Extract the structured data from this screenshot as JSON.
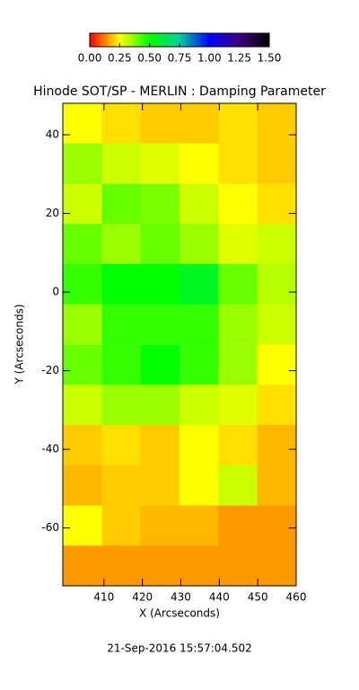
{
  "chart_data": {
    "type": "heatmap",
    "title": "Hinode SOT/SP - MERLIN : Damping Parameter",
    "x_label": "X (Arcseconds)",
    "y_label": "Y (Arcseconds)",
    "footer": "21-Sep-2016 15:57:04.502",
    "xlim": [
      399.3,
      460
    ],
    "ylim": [
      -74.7,
      48
    ],
    "xticks": [
      410,
      420,
      430,
      440,
      450,
      460
    ],
    "yticks": [
      -60,
      -40,
      -20,
      0,
      20,
      40
    ],
    "x": [
      404.4,
      414.5,
      424.6,
      434.7,
      444.8,
      454.9
    ],
    "y": [
      42.9,
      32.7,
      22.4,
      12.2,
      2.0,
      -8.2,
      -18.5,
      -28.7,
      -38.9,
      -49.2,
      -59.4,
      -69.6
    ],
    "z": [
      [
        0.25,
        0.22,
        0.2,
        0.2,
        0.22,
        0.2
      ],
      [
        0.35,
        0.3,
        0.28,
        0.25,
        0.22,
        0.2
      ],
      [
        0.3,
        0.4,
        0.38,
        0.3,
        0.25,
        0.22
      ],
      [
        0.4,
        0.35,
        0.4,
        0.35,
        0.28,
        0.3
      ],
      [
        0.45,
        0.5,
        0.5,
        0.55,
        0.4,
        0.32
      ],
      [
        0.35,
        0.45,
        0.45,
        0.45,
        0.35,
        0.3
      ],
      [
        0.4,
        0.45,
        0.5,
        0.45,
        0.35,
        0.25
      ],
      [
        0.3,
        0.35,
        0.35,
        0.3,
        0.28,
        0.22
      ],
      [
        0.2,
        0.22,
        0.2,
        0.25,
        0.22,
        0.18
      ],
      [
        0.18,
        0.2,
        0.2,
        0.25,
        0.3,
        0.18
      ],
      [
        0.25,
        0.2,
        0.18,
        0.18,
        0.15,
        0.15
      ],
      [
        0.15,
        0.15,
        0.15,
        0.15,
        0.15,
        0.15
      ]
    ],
    "clim": [
      0,
      1.5
    ],
    "colormap": [
      "#ff0000",
      "#ffff00",
      "#00ff00",
      "#00d0a0",
      "#0000ff",
      "#400080",
      "#000000"
    ],
    "cticks": [
      {
        "value": 0,
        "label": "0.00"
      },
      {
        "value": 0.25,
        "label": "0.25"
      },
      {
        "value": 0.5,
        "label": "0.50"
      },
      {
        "value": 0.75,
        "label": "0.75"
      },
      {
        "value": 1,
        "label": "1.00"
      },
      {
        "value": 1.25,
        "label": "1.25"
      },
      {
        "value": 1.5,
        "label": "1.50"
      }
    ]
  }
}
